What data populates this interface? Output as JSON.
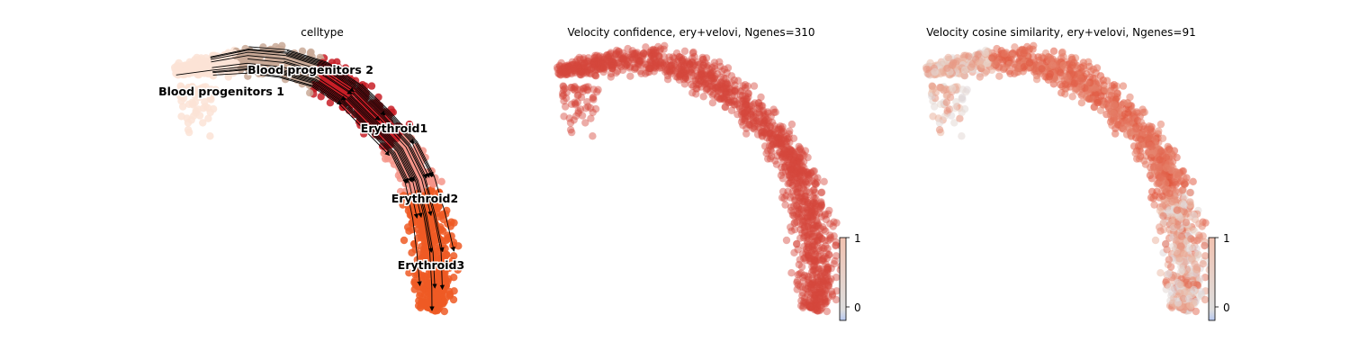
{
  "chart_data": [
    {
      "type": "scatter",
      "title": "celltype",
      "xlabel": "",
      "ylabel": "",
      "grid": false,
      "legend": "on data",
      "categories": [
        "Blood progenitors 1",
        "Blood progenitors 2",
        "Erythroid1",
        "Erythroid2",
        "Erythroid3"
      ],
      "category_colors": [
        "#fbe3d6",
        "#c9a997",
        "#c81e27",
        "#f5958a",
        "#ee5a24"
      ],
      "overlay": "velocity streamlines"
    },
    {
      "type": "scatter",
      "title": "Velocity confidence, ery+velovi, Ngenes=310",
      "xlabel": "",
      "ylabel": "",
      "grid": false,
      "colorbar": {
        "colormap": "coolwarm",
        "ticks": [
          "0",
          "1"
        ],
        "range": [
          -0.15,
          1
        ]
      },
      "value_summary": "nearly all cells close to 1"
    },
    {
      "type": "scatter",
      "title": "Velocity cosine similarity, ery+velovi, Ngenes=91",
      "xlabel": "",
      "ylabel": "",
      "grid": false,
      "colorbar": {
        "colormap": "coolwarm",
        "ticks": [
          "0",
          "1"
        ],
        "range": [
          -0.15,
          1
        ]
      },
      "value_summary": "high in the middle of the trajectory, lower at both ends"
    }
  ],
  "colors": {
    "confidence_high": "#d4463c",
    "cbar_low": "#b7c8f0",
    "cbar_mid": "#dddddd",
    "cbar_high": "#f2c2b0",
    "streamline": "#000000"
  }
}
